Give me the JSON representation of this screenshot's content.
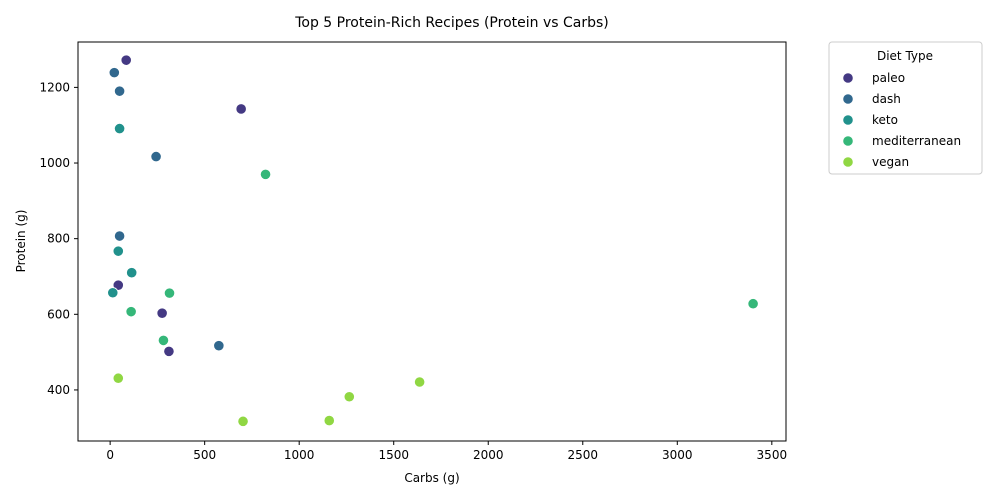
{
  "chart_data": {
    "type": "scatter",
    "title": "Top 5 Protein-Rich Recipes (Protein vs Carbs)",
    "xlabel": "Carbs (g)",
    "ylabel": "Protein (g)",
    "xlim": [
      -170,
      3575
    ],
    "ylim": [
      265,
      1320
    ],
    "xticks": [
      0,
      500,
      1000,
      1500,
      2000,
      2500,
      3000,
      3500
    ],
    "yticks": [
      400,
      600,
      800,
      1000,
      1200
    ],
    "grid": false,
    "legend": {
      "title": "Diet Type",
      "placement": "outside-upper-right"
    },
    "series": [
      {
        "name": "paleo",
        "color": "#443983",
        "points": [
          {
            "x": 85,
            "y": 1272
          },
          {
            "x": 693,
            "y": 1143
          },
          {
            "x": 43,
            "y": 677
          },
          {
            "x": 275,
            "y": 603
          },
          {
            "x": 311,
            "y": 502
          }
        ]
      },
      {
        "name": "dash",
        "color": "#31688e",
        "points": [
          {
            "x": 22,
            "y": 1239
          },
          {
            "x": 50,
            "y": 1190
          },
          {
            "x": 243,
            "y": 1017
          },
          {
            "x": 50,
            "y": 807
          },
          {
            "x": 575,
            "y": 517
          }
        ]
      },
      {
        "name": "keto",
        "color": "#21918c",
        "points": [
          {
            "x": 50,
            "y": 1091
          },
          {
            "x": 43,
            "y": 767
          },
          {
            "x": 114,
            "y": 710
          },
          {
            "x": 14,
            "y": 657
          }
        ]
      },
      {
        "name": "mediterranean",
        "color": "#35b779",
        "points": [
          {
            "x": 822,
            "y": 970
          },
          {
            "x": 314,
            "y": 656
          },
          {
            "x": 3401,
            "y": 628
          },
          {
            "x": 111,
            "y": 607
          },
          {
            "x": 282,
            "y": 531
          }
        ]
      },
      {
        "name": "vegan",
        "color": "#90d743",
        "points": [
          {
            "x": 43,
            "y": 431
          },
          {
            "x": 1637,
            "y": 421
          },
          {
            "x": 1265,
            "y": 382
          },
          {
            "x": 703,
            "y": 317
          },
          {
            "x": 1159,
            "y": 319
          }
        ]
      }
    ]
  }
}
